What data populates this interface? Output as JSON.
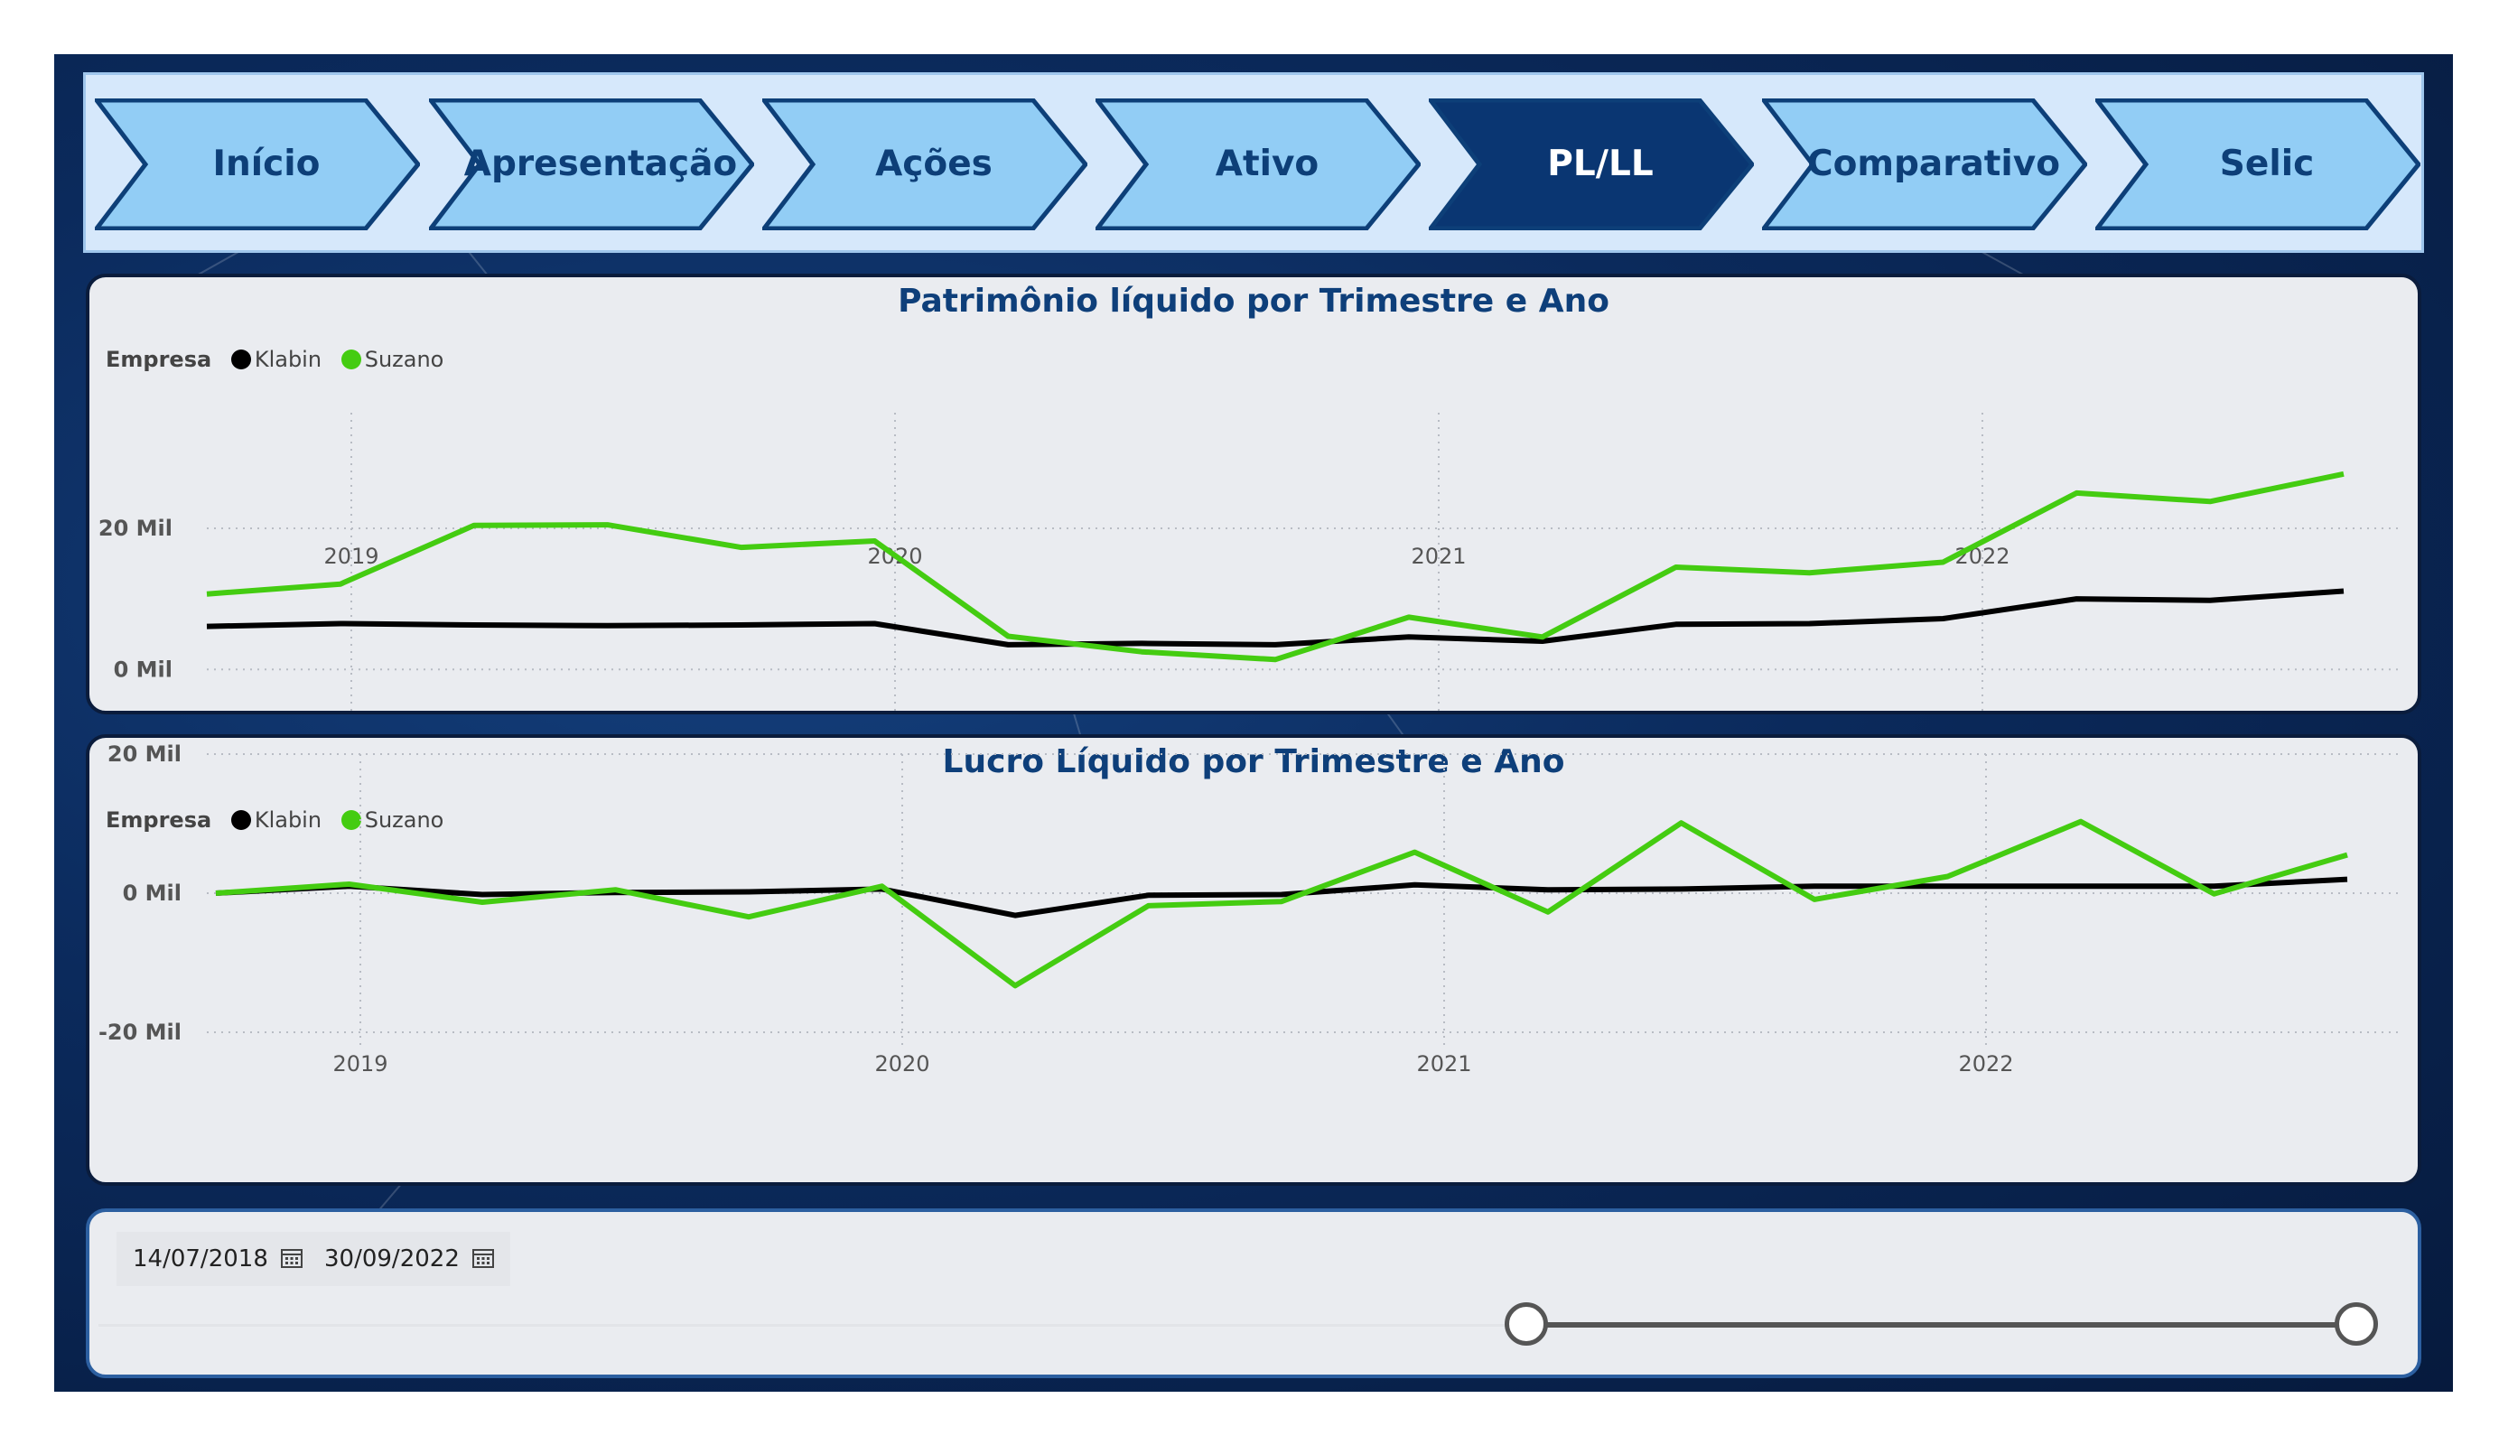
{
  "nav": {
    "items": [
      {
        "label": "Início",
        "active": false
      },
      {
        "label": "Apresentação",
        "active": false
      },
      {
        "label": "Ações",
        "active": false
      },
      {
        "label": "Ativo",
        "active": false
      },
      {
        "label": "PL/LL",
        "active": true
      },
      {
        "label": "Comparativo",
        "active": false
      },
      {
        "label": "Selic",
        "active": false
      }
    ],
    "colors": {
      "fill": "#92cdf5",
      "border": "#0d3f78",
      "active_fill": "#0a3672"
    }
  },
  "legend": {
    "title": "Empresa",
    "items": [
      {
        "name": "Klabin",
        "color": "#000000"
      },
      {
        "name": "Suzano",
        "color": "#44cc11"
      }
    ]
  },
  "chart_data": [
    {
      "type": "line",
      "title": "Patrimônio líquido por Trimestre e Ano",
      "x_labels": [
        "2019",
        "2020",
        "2021",
        "2022"
      ],
      "y_tick_labels": [
        "20 Mil",
        "0 Mil"
      ],
      "y_ticks": [
        20,
        0
      ],
      "ylim": [
        -1.5,
        31
      ],
      "series": [
        {
          "name": "Klabin",
          "color": "#000000",
          "values": [
            6.1,
            6.5,
            6.3,
            6.2,
            6.3,
            6.5,
            3.5,
            3.7,
            3.5,
            4.6,
            4.0,
            6.4,
            6.5,
            7.2,
            10.0,
            9.8,
            11.1
          ]
        },
        {
          "name": "Suzano",
          "color": "#44cc11",
          "values": [
            10.7,
            12.1,
            20.4,
            20.5,
            17.3,
            18.2,
            4.7,
            2.5,
            1.4,
            7.4,
            4.6,
            14.5,
            13.7,
            15.2,
            25.0,
            23.8,
            27.7
          ]
        }
      ]
    },
    {
      "type": "line",
      "title": "Lucro Líquido por Trimestre e Ano",
      "x_labels": [
        "2019",
        "2020",
        "2021",
        "2022"
      ],
      "y_tick_labels": [
        "20 Mil",
        "0 Mil",
        "-20 Mil"
      ],
      "y_ticks": [
        20,
        0,
        -20
      ],
      "ylim": [
        -20,
        20
      ],
      "series": [
        {
          "name": "Klabin",
          "color": "#000000",
          "values": [
            0.0,
            1.0,
            -0.2,
            0.1,
            0.2,
            0.6,
            -3.2,
            -0.3,
            -0.2,
            1.2,
            0.5,
            0.6,
            1.0,
            1.0,
            1.0,
            1.0,
            2.0
          ]
        },
        {
          "name": "Suzano",
          "color": "#44cc11",
          "values": [
            0.0,
            1.3,
            -1.3,
            0.5,
            -3.4,
            1.0,
            -13.3,
            -1.8,
            -1.2,
            5.9,
            -2.7,
            10.1,
            -0.9,
            2.4,
            10.3,
            -0.1,
            5.5
          ]
        }
      ]
    }
  ],
  "date_slicer": {
    "start": "14/07/2018",
    "end": "30/09/2022",
    "start_fraction": 0.63,
    "end_fraction": 1.0
  }
}
